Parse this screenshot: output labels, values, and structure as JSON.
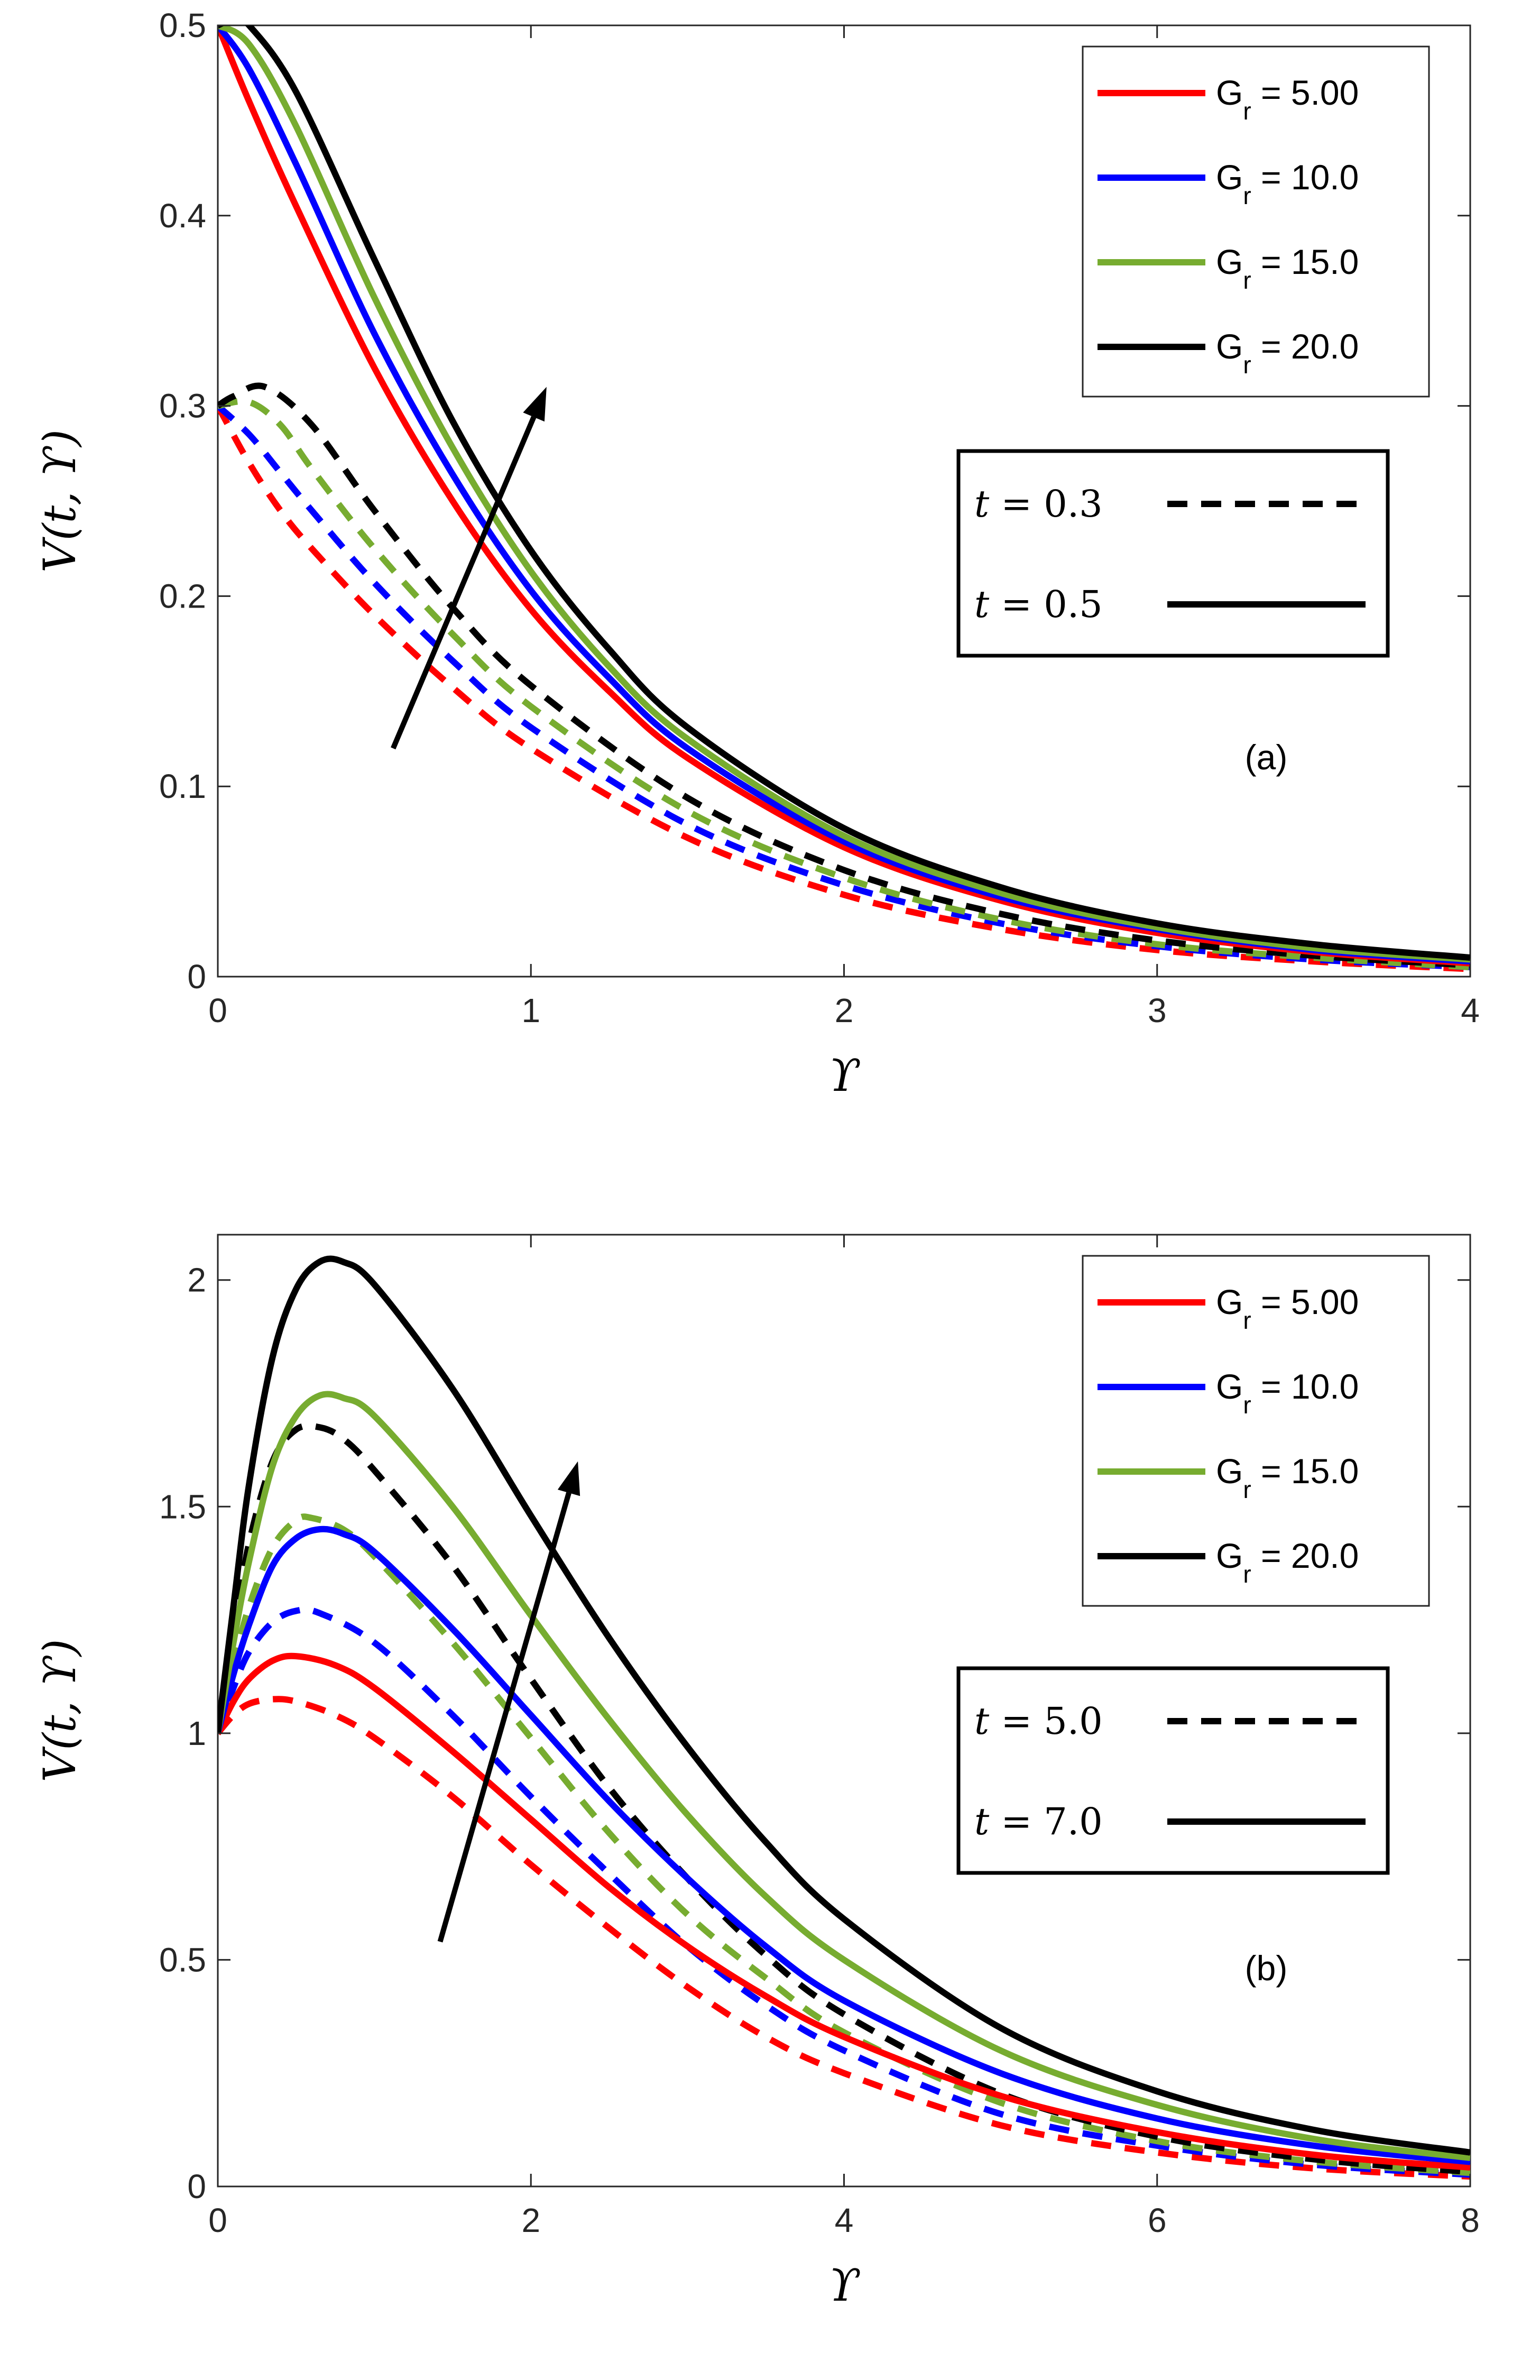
{
  "colors": {
    "Gr_5": "#ff0000",
    "Gr_10": "#0000ff",
    "Gr_15": "#77ac30",
    "Gr_20": "#000000"
  },
  "chart_data": [
    {
      "type": "line",
      "panel_label": "(a)",
      "xlabel": "ϒ",
      "ylabel": "V(t, ϒ)",
      "xlim": [
        0,
        4
      ],
      "ylim": [
        0,
        0.5
      ],
      "xticks": [
        0,
        1,
        2,
        3,
        4
      ],
      "xtick_labels": [
        "0",
        "1",
        "2",
        "3",
        "4"
      ],
      "yticks": [
        0,
        0.1,
        0.2,
        0.3,
        0.4,
        0.5
      ],
      "ytick_labels": [
        "0",
        "0.1",
        "0.2",
        "0.3",
        "0.4",
        "0.5"
      ],
      "legend_groups": [
        {
          "name": "G",
          "sub": "r",
          "value": " = 5.00",
          "color": "#ff0000"
        },
        {
          "name": "G",
          "sub": "r",
          "value": " = 10.0",
          "color": "#0000ff"
        },
        {
          "name": "G",
          "sub": "r",
          "value": " = 15.0",
          "color": "#77ac30"
        },
        {
          "name": "G",
          "sub": "r",
          "value": " = 20.0",
          "color": "#000000"
        }
      ],
      "time_legend": [
        {
          "var": "t",
          "eq": " = ",
          "value": "0.3",
          "style": "dashed"
        },
        {
          "var": "t",
          "eq": " = ",
          "value": "0.5",
          "style": "solid"
        }
      ],
      "arrow": {
        "from": [
          0.56,
          0.12
        ],
        "to": [
          1.05,
          0.31
        ]
      },
      "series": [
        {
          "name": "Gr=5.00, t=0.3",
          "color": "#ff0000",
          "dashed": true,
          "x": [
            0,
            0.1,
            0.2,
            0.3,
            0.5,
            0.75,
            1.0,
            1.5,
            2.0,
            2.5,
            3.0,
            3.5,
            4.0
          ],
          "y": [
            0.3,
            0.27,
            0.245,
            0.225,
            0.19,
            0.152,
            0.12,
            0.073,
            0.043,
            0.025,
            0.014,
            0.008,
            0.004
          ]
        },
        {
          "name": "Gr=10.0, t=0.3",
          "color": "#0000ff",
          "dashed": true,
          "x": [
            0,
            0.1,
            0.2,
            0.3,
            0.5,
            0.75,
            1.0,
            1.5,
            2.0,
            2.5,
            3.0,
            3.5,
            4.0
          ],
          "y": [
            0.3,
            0.285,
            0.265,
            0.245,
            0.207,
            0.166,
            0.131,
            0.08,
            0.048,
            0.028,
            0.016,
            0.009,
            0.005
          ]
        },
        {
          "name": "Gr=15.0, t=0.3",
          "color": "#77ac30",
          "dashed": true,
          "x": [
            0,
            0.1,
            0.2,
            0.3,
            0.5,
            0.75,
            1.0,
            1.5,
            2.0,
            2.5,
            3.0,
            3.5,
            4.0
          ],
          "y": [
            0.3,
            0.302,
            0.29,
            0.267,
            0.225,
            0.18,
            0.142,
            0.087,
            0.052,
            0.03,
            0.017,
            0.01,
            0.005
          ]
        },
        {
          "name": "Gr=20.0, t=0.3",
          "color": "#000000",
          "dashed": true,
          "x": [
            0,
            0.05,
            0.15,
            0.3,
            0.5,
            0.75,
            1.0,
            1.5,
            2.0,
            2.5,
            3.0,
            3.5,
            4.0
          ],
          "y": [
            0.3,
            0.305,
            0.31,
            0.29,
            0.245,
            0.194,
            0.153,
            0.094,
            0.056,
            0.033,
            0.019,
            0.011,
            0.006
          ]
        },
        {
          "name": "Gr=5.00, t=0.5",
          "color": "#ff0000",
          "dashed": false,
          "x": [
            0,
            0.1,
            0.25,
            0.5,
            0.75,
            1.0,
            1.25,
            1.5,
            2.0,
            2.5,
            3.0,
            3.5,
            4.0
          ],
          "y": [
            0.5,
            0.46,
            0.405,
            0.32,
            0.25,
            0.193,
            0.15,
            0.115,
            0.068,
            0.04,
            0.023,
            0.013,
            0.007
          ]
        },
        {
          "name": "Gr=10.0, t=0.5",
          "color": "#0000ff",
          "dashed": false,
          "x": [
            0,
            0.1,
            0.25,
            0.5,
            0.75,
            1.0,
            1.25,
            1.5,
            2.0,
            2.5,
            3.0,
            3.5,
            4.0
          ],
          "y": [
            0.5,
            0.477,
            0.427,
            0.338,
            0.264,
            0.203,
            0.157,
            0.12,
            0.071,
            0.042,
            0.025,
            0.014,
            0.008
          ]
        },
        {
          "name": "Gr=15.0, t=0.5",
          "color": "#77ac30",
          "dashed": false,
          "x": [
            0,
            0.1,
            0.25,
            0.5,
            0.75,
            1.0,
            1.25,
            1.5,
            2.0,
            2.5,
            3.0,
            3.5,
            4.0
          ],
          "y": [
            0.5,
            0.49,
            0.447,
            0.357,
            0.278,
            0.213,
            0.163,
            0.125,
            0.074,
            0.044,
            0.026,
            0.015,
            0.009
          ]
        },
        {
          "name": "Gr=20.0, t=0.5",
          "color": "#000000",
          "dashed": false,
          "x": [
            0,
            0.05,
            0.1,
            0.25,
            0.5,
            0.75,
            1.0,
            1.25,
            1.5,
            2.0,
            2.5,
            3.0,
            3.5,
            4.0
          ],
          "y": [
            0.5,
            0.503,
            0.5,
            0.465,
            0.377,
            0.292,
            0.224,
            0.172,
            0.131,
            0.078,
            0.047,
            0.028,
            0.017,
            0.01
          ]
        }
      ]
    },
    {
      "type": "line",
      "panel_label": "(b)",
      "xlabel": "ϒ",
      "ylabel": "V(t, ϒ)",
      "xlim": [
        0,
        8
      ],
      "ylim": [
        0,
        2.1
      ],
      "xticks": [
        0,
        2,
        4,
        6,
        8
      ],
      "xtick_labels": [
        "0",
        "2",
        "4",
        "6",
        "8"
      ],
      "yticks": [
        0,
        0.5,
        1,
        1.5,
        2
      ],
      "ytick_labels": [
        "0",
        "0.5",
        "1",
        "1.5",
        "2"
      ],
      "legend_groups": [
        {
          "name": "G",
          "sub": "r",
          "value": " = 5.00",
          "color": "#ff0000"
        },
        {
          "name": "G",
          "sub": "r",
          "value": " = 10.0",
          "color": "#0000ff"
        },
        {
          "name": "G",
          "sub": "r",
          "value": " = 15.0",
          "color": "#77ac30"
        },
        {
          "name": "G",
          "sub": "r",
          "value": " = 20.0",
          "color": "#000000"
        }
      ],
      "time_legend": [
        {
          "var": "t",
          "eq": " = ",
          "value": "5.0",
          "style": "dashed"
        },
        {
          "var": "t",
          "eq": " = ",
          "value": "7.0",
          "style": "solid"
        }
      ],
      "arrow": {
        "from": [
          1.42,
          0.54
        ],
        "to": [
          2.3,
          1.6
        ]
      },
      "series": [
        {
          "name": "Gr=5.00, t=5.0",
          "color": "#ff0000",
          "dashed": true,
          "x": [
            0,
            0.1,
            0.2,
            0.35,
            0.5,
            0.75,
            1.0,
            1.5,
            2.0,
            2.5,
            3.0,
            3.5,
            4.0,
            5.0,
            6.0,
            7.0,
            8.0
          ],
          "y": [
            1.0,
            1.04,
            1.065,
            1.075,
            1.07,
            1.04,
            0.99,
            0.86,
            0.71,
            0.57,
            0.44,
            0.33,
            0.25,
            0.135,
            0.075,
            0.04,
            0.022
          ]
        },
        {
          "name": "Gr=10.0, t=5.0",
          "color": "#0000ff",
          "dashed": true,
          "x": [
            0,
            0.1,
            0.2,
            0.35,
            0.5,
            0.65,
            1.0,
            1.5,
            2.0,
            2.5,
            3.0,
            3.5,
            4.0,
            5.0,
            6.0,
            7.0,
            8.0
          ],
          "y": [
            1.0,
            1.1,
            1.18,
            1.245,
            1.27,
            1.265,
            1.2,
            1.04,
            0.86,
            0.69,
            0.53,
            0.4,
            0.3,
            0.16,
            0.09,
            0.048,
            0.026
          ]
        },
        {
          "name": "Gr=15.0, t=5.0",
          "color": "#77ac30",
          "dashed": true,
          "x": [
            0,
            0.1,
            0.2,
            0.35,
            0.5,
            0.6,
            0.8,
            1.0,
            1.5,
            2.0,
            2.5,
            3.0,
            3.5,
            4.0,
            5.0,
            6.0,
            7.0,
            8.0
          ],
          "y": [
            1.0,
            1.15,
            1.28,
            1.41,
            1.47,
            1.475,
            1.45,
            1.39,
            1.2,
            0.99,
            0.78,
            0.6,
            0.46,
            0.34,
            0.185,
            0.1,
            0.055,
            0.03
          ]
        },
        {
          "name": "Gr=20.0, t=5.0",
          "color": "#000000",
          "dashed": true,
          "x": [
            0,
            0.1,
            0.2,
            0.35,
            0.5,
            0.65,
            0.8,
            1.0,
            1.5,
            2.0,
            2.5,
            3.0,
            3.5,
            4.0,
            5.0,
            6.0,
            7.0,
            8.0
          ],
          "y": [
            1.0,
            1.22,
            1.42,
            1.6,
            1.67,
            1.675,
            1.65,
            1.58,
            1.37,
            1.12,
            0.88,
            0.68,
            0.51,
            0.38,
            0.205,
            0.11,
            0.06,
            0.032
          ]
        },
        {
          "name": "Gr=5.00, t=7.0",
          "color": "#ff0000",
          "dashed": false,
          "x": [
            0,
            0.1,
            0.2,
            0.35,
            0.5,
            0.75,
            1.0,
            1.5,
            2.0,
            2.5,
            3.0,
            3.5,
            4.0,
            5.0,
            6.0,
            7.0,
            8.0
          ],
          "y": [
            1.0,
            1.07,
            1.12,
            1.16,
            1.17,
            1.15,
            1.1,
            0.96,
            0.81,
            0.66,
            0.53,
            0.42,
            0.33,
            0.2,
            0.12,
            0.07,
            0.042
          ]
        },
        {
          "name": "Gr=10.0, t=7.0",
          "color": "#0000ff",
          "dashed": false,
          "x": [
            0,
            0.1,
            0.2,
            0.35,
            0.5,
            0.65,
            0.8,
            1.0,
            1.5,
            2.0,
            2.5,
            3.0,
            3.5,
            4.0,
            5.0,
            6.0,
            7.0,
            8.0
          ],
          "y": [
            1.0,
            1.13,
            1.24,
            1.37,
            1.43,
            1.45,
            1.44,
            1.4,
            1.23,
            1.04,
            0.85,
            0.68,
            0.53,
            0.41,
            0.25,
            0.15,
            0.09,
            0.054
          ]
        },
        {
          "name": "Gr=15.0, t=7.0",
          "color": "#77ac30",
          "dashed": false,
          "x": [
            0,
            0.1,
            0.2,
            0.35,
            0.5,
            0.65,
            0.8,
            1.0,
            1.5,
            2.0,
            2.5,
            3.0,
            3.5,
            4.0,
            5.0,
            6.0,
            7.0,
            8.0
          ],
          "y": [
            1.0,
            1.2,
            1.38,
            1.59,
            1.7,
            1.745,
            1.74,
            1.7,
            1.5,
            1.26,
            1.03,
            0.82,
            0.64,
            0.5,
            0.3,
            0.18,
            0.105,
            0.063
          ]
        },
        {
          "name": "Gr=20.0, t=7.0",
          "color": "#000000",
          "dashed": false,
          "x": [
            0,
            0.1,
            0.2,
            0.35,
            0.5,
            0.65,
            0.8,
            1.0,
            1.5,
            2.0,
            2.5,
            3.0,
            3.5,
            4.0,
            5.0,
            6.0,
            7.0,
            8.0
          ],
          "y": [
            1.0,
            1.28,
            1.55,
            1.83,
            1.98,
            2.04,
            2.04,
            1.99,
            1.76,
            1.48,
            1.21,
            0.97,
            0.76,
            0.59,
            0.35,
            0.21,
            0.125,
            0.075
          ]
        }
      ]
    }
  ]
}
